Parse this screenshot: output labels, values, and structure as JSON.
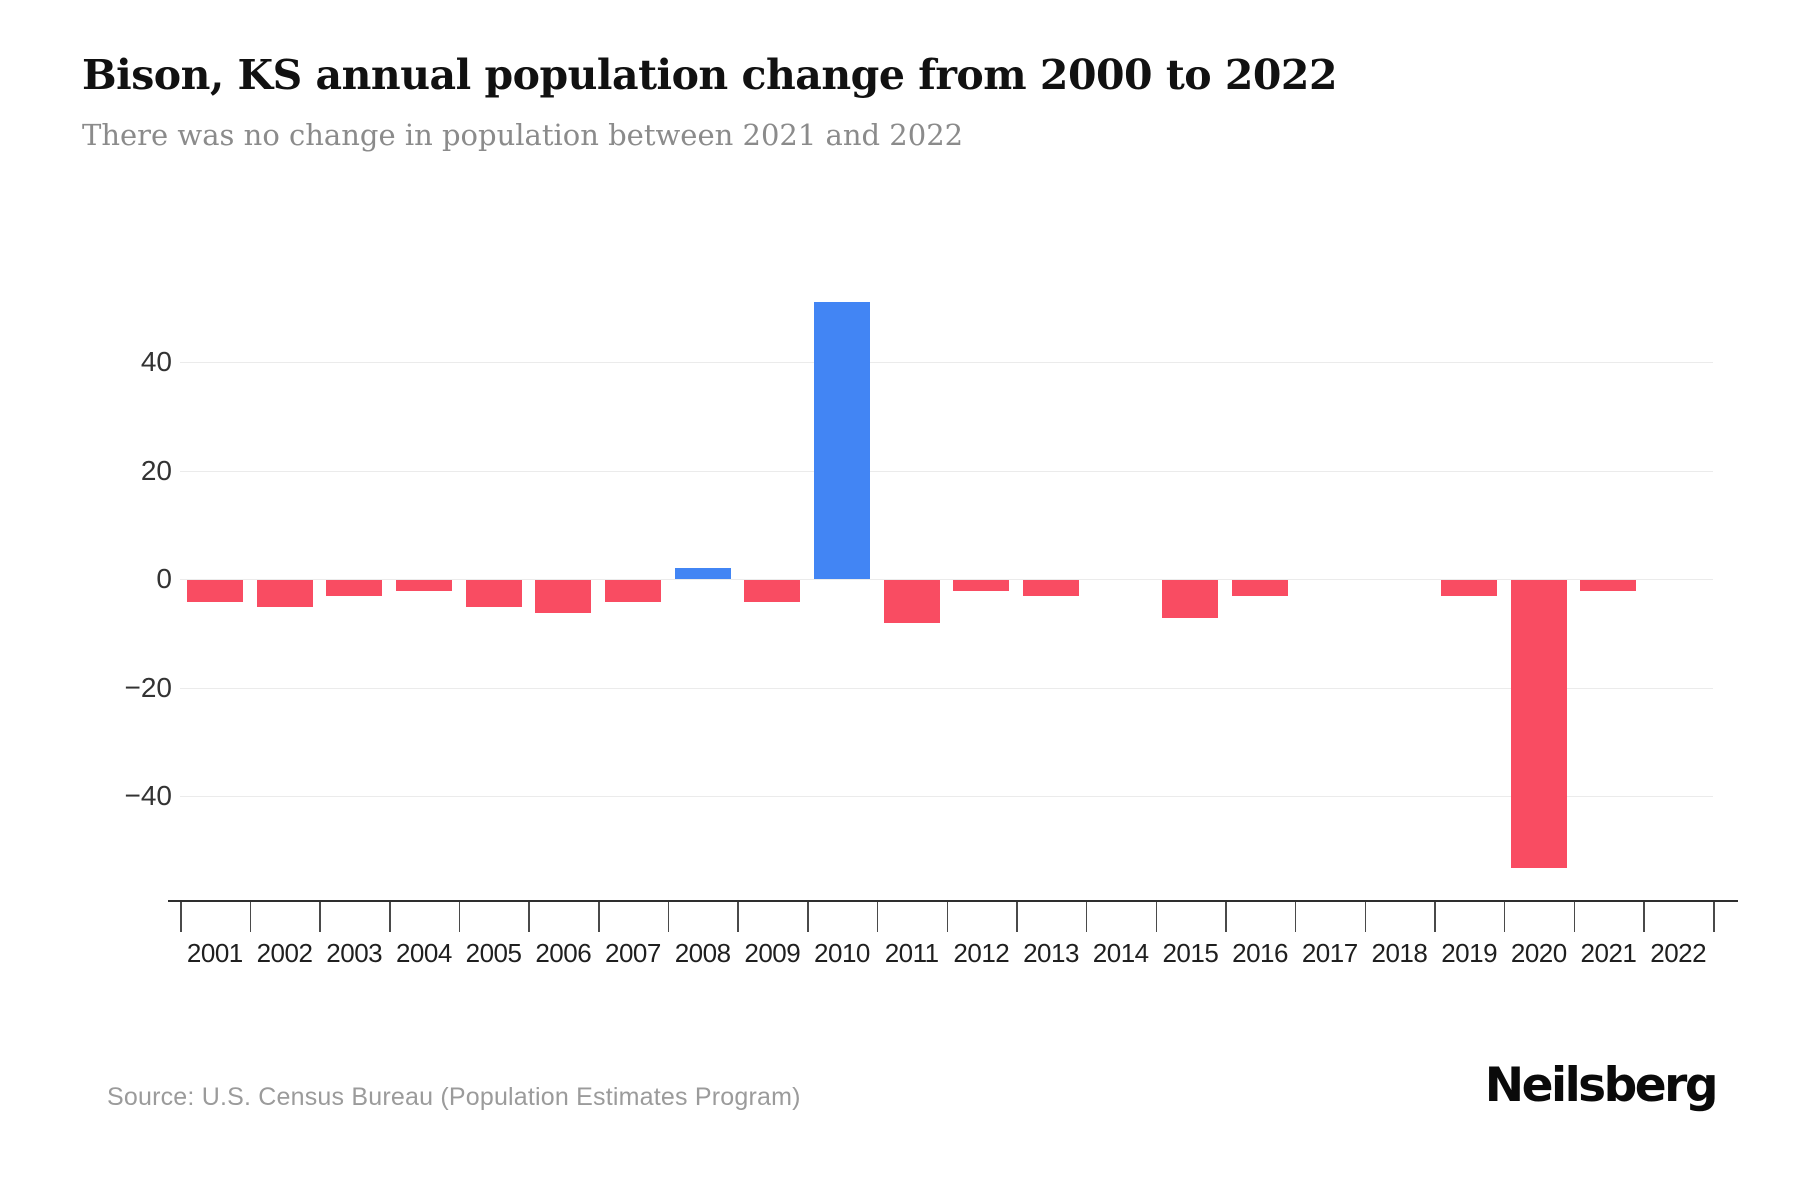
{
  "page": {
    "title": "Bison, KS annual population change from 2000 to 2022",
    "subtitle": "There was no change in population between 2021 and 2022",
    "source": "Source: U.S. Census Bureau (Population Estimates Program)",
    "brand": "Neilsberg"
  },
  "chart_data": {
    "type": "bar",
    "title": "Bison, KS annual population change from 2000 to 2022",
    "subtitle": "There was no change in population between 2021 and 2022",
    "xlabel": "",
    "ylabel": "",
    "categories": [
      "2001",
      "2002",
      "2003",
      "2004",
      "2005",
      "2006",
      "2007",
      "2008",
      "2009",
      "2010",
      "2011",
      "2012",
      "2013",
      "2014",
      "2015",
      "2016",
      "2017",
      "2018",
      "2019",
      "2020",
      "2021",
      "2022"
    ],
    "values": [
      -4,
      -5,
      -3,
      -2,
      -5,
      -6,
      -4,
      2,
      -4,
      51,
      -8,
      -2,
      -3,
      0,
      -7,
      -3,
      0,
      0,
      -3,
      -53,
      -2,
      0
    ],
    "yticks": [
      40,
      20,
      0,
      -20,
      -40
    ],
    "ylim": [
      -60,
      60
    ],
    "grid": true,
    "legend": "none",
    "positive_color": "#4285F4",
    "negative_color": "#F94C62",
    "gridline_color": "#ebebeb",
    "axis_line_color": "#2e2e2e"
  }
}
